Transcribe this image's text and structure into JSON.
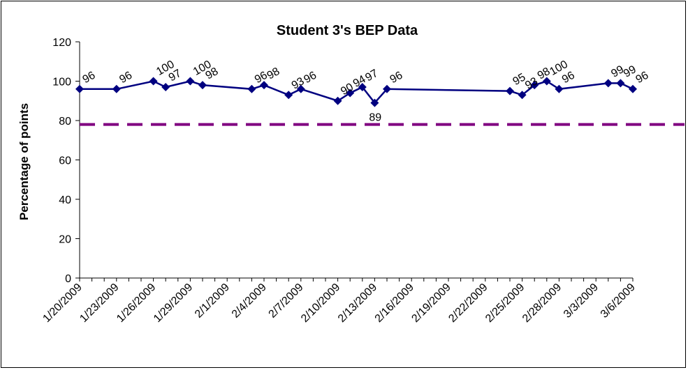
{
  "chart_data": {
    "type": "line",
    "title": "Student 3's BEP Data",
    "xlabel": "",
    "ylabel": "Percentage of points",
    "ylim": [
      0,
      120
    ],
    "yticks": [
      0,
      20,
      40,
      60,
      80,
      100,
      120
    ],
    "xlim": [
      "2009-01-20",
      "2009-03-06"
    ],
    "xtick_labels": [
      "1/20/2009",
      "1/23/2009",
      "1/26/2009",
      "1/29/2009",
      "2/1/2009",
      "2/4/2009",
      "2/7/2009",
      "2/10/2009",
      "2/13/2009",
      "2/16/2009",
      "2/19/2009",
      "2/22/2009",
      "2/25/2009",
      "2/28/2009",
      "3/3/2009",
      "3/6/2009"
    ],
    "grid": false,
    "legend": "none",
    "series": [
      {
        "color": "#000080",
        "points": [
          {
            "x": "2009-01-20",
            "y": 96
          },
          {
            "x": "2009-01-23",
            "y": 96
          },
          {
            "x": "2009-01-26",
            "y": 100
          },
          {
            "x": "2009-01-27",
            "y": 97
          },
          {
            "x": "2009-01-29",
            "y": 100
          },
          {
            "x": "2009-01-30",
            "y": 98
          },
          {
            "x": "2009-02-03",
            "y": 96
          },
          {
            "x": "2009-02-04",
            "y": 98
          },
          {
            "x": "2009-02-06",
            "y": 93
          },
          {
            "x": "2009-02-07",
            "y": 96
          },
          {
            "x": "2009-02-10",
            "y": 90
          },
          {
            "x": "2009-02-11",
            "y": 94
          },
          {
            "x": "2009-02-12",
            "y": 97
          },
          {
            "x": "2009-02-13",
            "y": 89
          },
          {
            "x": "2009-02-14",
            "y": 96
          },
          {
            "x": "2009-02-24",
            "y": 95
          },
          {
            "x": "2009-02-25",
            "y": 93
          },
          {
            "x": "2009-02-26",
            "y": 98
          },
          {
            "x": "2009-02-27",
            "y": 100
          },
          {
            "x": "2009-02-28",
            "y": 96
          },
          {
            "x": "2009-03-04",
            "y": 99
          },
          {
            "x": "2009-03-05",
            "y": 99
          },
          {
            "x": "2009-03-06",
            "y": 96
          }
        ]
      }
    ],
    "reference_line": {
      "y": 78,
      "style": "dashed",
      "color": "#800080"
    }
  }
}
